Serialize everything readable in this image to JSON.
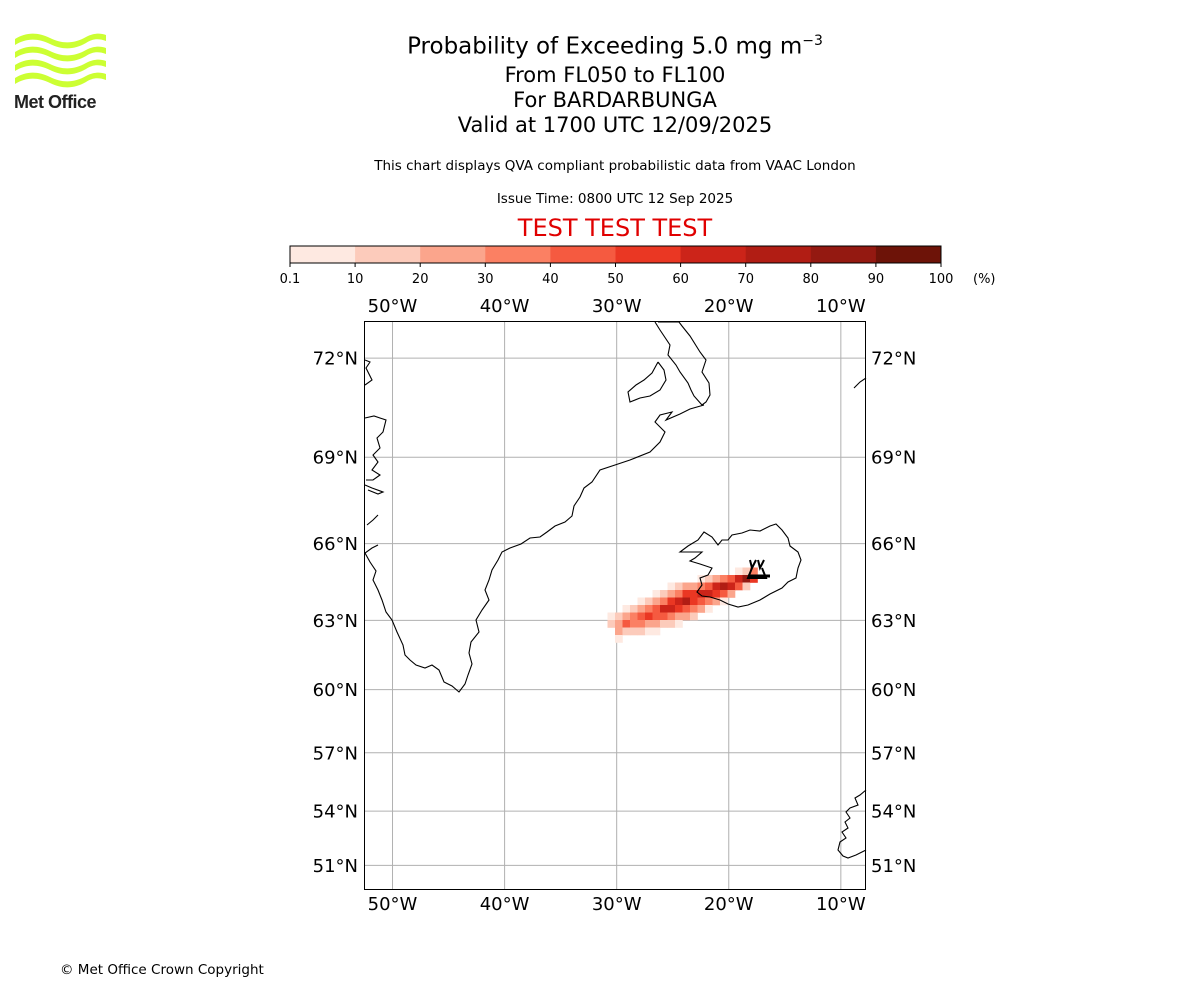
{
  "logo": {
    "text": "Met Office",
    "color": "#ccff33"
  },
  "header": {
    "title_main": "Probability of Exceeding 5.0 mg m",
    "title_exp": "−3",
    "range": "From FL050 to FL100",
    "volcano": "For BARDARBUNGA",
    "valid": "Valid at 1700 UTC 12/09/2025",
    "description": "This chart displays QVA compliant probabilistic data from VAAC London",
    "issue": "Issue Time: 0800 UTC 12 Sep 2025",
    "test_banner": "TEST TEST TEST",
    "test_color": "#e00000"
  },
  "colorbar": {
    "ticks": [
      "0.1",
      "10",
      "20",
      "30",
      "40",
      "50",
      "60",
      "70",
      "80",
      "90",
      "100"
    ],
    "unit": "(%)",
    "colors": [
      "#fee9e1",
      "#fccbbb",
      "#fba58c",
      "#fb8063",
      "#f55a40",
      "#ea3723",
      "#cc2419",
      "#b11d14",
      "#941911",
      "#6d1308"
    ]
  },
  "map": {
    "lon_range": [
      -52.5,
      -7.8
    ],
    "lat_range": [
      49.6,
      73.0
    ],
    "lon_labels": [
      {
        "lon": -50,
        "text": "50°W"
      },
      {
        "lon": -40,
        "text": "40°W"
      },
      {
        "lon": -30,
        "text": "30°W"
      },
      {
        "lon": -20,
        "text": "20°W"
      },
      {
        "lon": -10,
        "text": "10°W"
      }
    ],
    "lat_labels": [
      {
        "lat": 72,
        "text": "72°N"
      },
      {
        "lat": 69,
        "text": "69°N"
      },
      {
        "lat": 66,
        "text": "66°N"
      },
      {
        "lat": 63,
        "text": "63°N"
      },
      {
        "lat": 60,
        "text": "60°N"
      },
      {
        "lat": 57,
        "text": "57°N"
      },
      {
        "lat": 54,
        "text": "54°N"
      },
      {
        "lat": 51,
        "text": "51°N"
      }
    ],
    "volcano_marker": {
      "name": "BARDARBUNGA",
      "lon": -17.5,
      "lat": 64.6
    }
  },
  "footer": {
    "copyright": "© Met Office Crown Copyright"
  }
}
